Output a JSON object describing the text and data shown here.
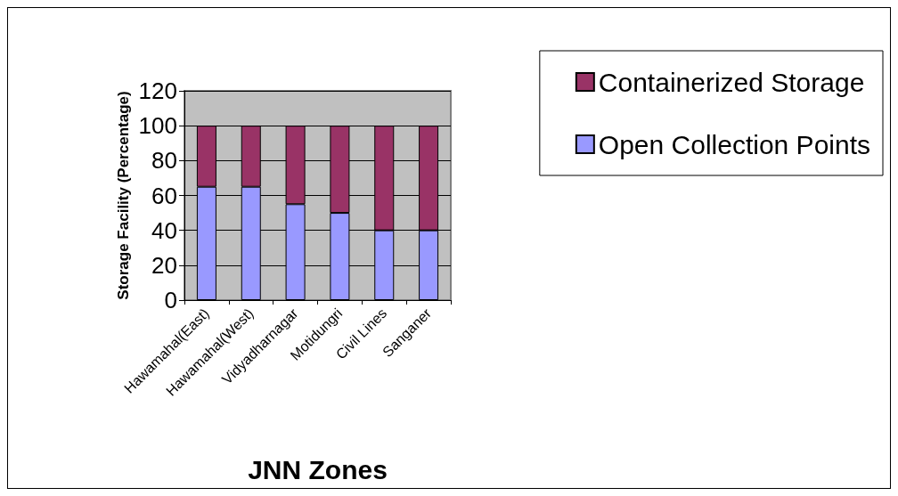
{
  "chart_data": {
    "type": "bar",
    "stacked": true,
    "xlabel": "JNN Zones",
    "ylabel": "Storage Facility (Percentage)",
    "categories": [
      "Hawamahal(East)",
      "Hawamahal(West)",
      "Vidyadharnagar",
      "Motidungri",
      "Civil Lines",
      "Sanganer"
    ],
    "series": [
      {
        "name": "Open Collection Points",
        "color": "#9999ff",
        "values": [
          65,
          65,
          55,
          50,
          40,
          40
        ]
      },
      {
        "name": "Containerized Storage",
        "color": "#993366",
        "values": [
          35,
          35,
          45,
          50,
          60,
          60
        ]
      }
    ],
    "ylim": [
      0,
      120
    ],
    "yticks": [
      0,
      20,
      40,
      60,
      80,
      100,
      120
    ],
    "grid": "y",
    "legend": "top right"
  }
}
